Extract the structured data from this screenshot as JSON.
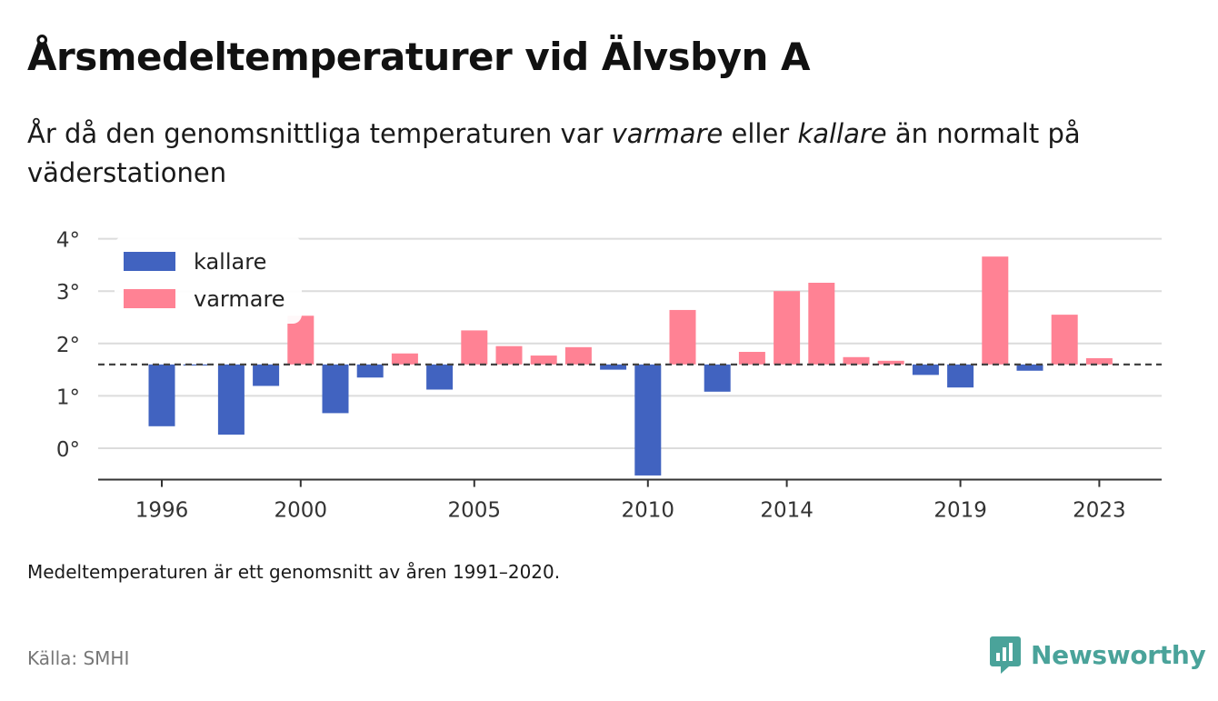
{
  "title": "Årsmedeltemperaturer vid Älvsbyn A",
  "subtitle": {
    "part1": "År då den genomsnittliga temperaturen var ",
    "em1": "varmare",
    "part2": " eller ",
    "em2": "kallare",
    "part3": " än normalt på väderstationen"
  },
  "footnote": "Medeltemperaturen är ett genomsnitt av åren 1991–2020.",
  "source": "Källa: SMHI",
  "brand": {
    "name": "Newsworthy",
    "icon": "newsworthy-logo-icon",
    "color": "#4aa39a"
  },
  "chart_data": {
    "type": "bar",
    "title": "Årsmedeltemperaturer vid Älvsbyn A",
    "xlabel": "",
    "ylabel": "",
    "baseline": 1.6,
    "baseline_style": "dashed",
    "ylim": [
      -0.6,
      4.0
    ],
    "yticks": [
      0,
      1,
      2,
      3,
      4
    ],
    "ytick_labels": [
      "0°",
      "1°",
      "2°",
      "3°",
      "4°"
    ],
    "xticks": [
      1996,
      2000,
      2005,
      2010,
      2014,
      2019,
      2023
    ],
    "xtick_labels": [
      "1996",
      "2000",
      "2005",
      "2010",
      "2014",
      "2019",
      "2023"
    ],
    "grid": true,
    "legend_position": "top-left",
    "colors": {
      "kallare": "#4163c0",
      "varmare": "#ff8294"
    },
    "series": [
      {
        "name": "kallare",
        "color": "#4163c0"
      },
      {
        "name": "varmare",
        "color": "#ff8294"
      }
    ],
    "years": [
      1996,
      1997,
      1998,
      1999,
      2000,
      2001,
      2002,
      2003,
      2004,
      2005,
      2006,
      2007,
      2008,
      2009,
      2010,
      2011,
      2012,
      2013,
      2014,
      2015,
      2016,
      2017,
      2018,
      2019,
      2020,
      2021,
      2022,
      2023
    ],
    "values": [
      0.42,
      1.58,
      0.26,
      1.19,
      2.53,
      0.67,
      1.35,
      1.81,
      1.12,
      2.25,
      1.95,
      1.77,
      1.93,
      1.5,
      -0.52,
      2.64,
      1.08,
      1.84,
      3.0,
      3.16,
      1.74,
      1.67,
      1.4,
      1.16,
      3.66,
      1.48,
      2.55,
      1.72
    ]
  }
}
